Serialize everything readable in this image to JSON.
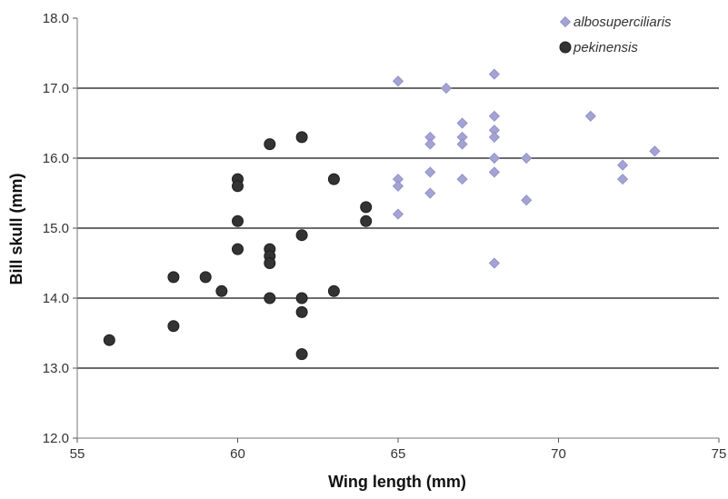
{
  "chart_data": {
    "type": "scatter",
    "title": "",
    "xlabel": "Wing length (mm)",
    "ylabel": "Bill skull (mm)",
    "xlim": [
      55,
      75
    ],
    "ylim": [
      12.0,
      18.0
    ],
    "x_ticks": [
      "55",
      "60",
      "65",
      "70",
      "75"
    ],
    "y_ticks": [
      "12.0",
      "13.0",
      "14.0",
      "15.0",
      "16.0",
      "17.0",
      "18.0"
    ],
    "grid": "horizontal",
    "legend_position": "top-right",
    "series": [
      {
        "name": "albosuperciliaris",
        "marker": "diamond",
        "color": "#a3a3d4",
        "points": [
          [
            65,
            17.1
          ],
          [
            66.5,
            17.0
          ],
          [
            68,
            17.2
          ],
          [
            66,
            16.3
          ],
          [
            66,
            16.2
          ],
          [
            67,
            16.5
          ],
          [
            67,
            16.3
          ],
          [
            67,
            16.2
          ],
          [
            68,
            16.6
          ],
          [
            68,
            16.4
          ],
          [
            68,
            16.3
          ],
          [
            68,
            16.0
          ],
          [
            68,
            15.8
          ],
          [
            69,
            16.0
          ],
          [
            71,
            16.6
          ],
          [
            72,
            15.9
          ],
          [
            72,
            15.7
          ],
          [
            73,
            16.1
          ],
          [
            65,
            15.7
          ],
          [
            65,
            15.6
          ],
          [
            65,
            15.2
          ],
          [
            66,
            15.8
          ],
          [
            66,
            15.5
          ],
          [
            67,
            15.7
          ],
          [
            69,
            15.4
          ],
          [
            68,
            14.5
          ]
        ]
      },
      {
        "name": "pekinensis",
        "marker": "circle",
        "color": "#333333",
        "points": [
          [
            56,
            13.4
          ],
          [
            58,
            14.3
          ],
          [
            58,
            13.6
          ],
          [
            59,
            14.3
          ],
          [
            59.5,
            14.1
          ],
          [
            60,
            15.7
          ],
          [
            60,
            15.6
          ],
          [
            60,
            15.1
          ],
          [
            60,
            14.7
          ],
          [
            61,
            16.2
          ],
          [
            61,
            14.7
          ],
          [
            61,
            14.6
          ],
          [
            61,
            14.5
          ],
          [
            61,
            14.0
          ],
          [
            62,
            16.3
          ],
          [
            62,
            14.9
          ],
          [
            62,
            14.0
          ],
          [
            62,
            13.8
          ],
          [
            62,
            13.2
          ],
          [
            63,
            15.7
          ],
          [
            63,
            14.1
          ],
          [
            64,
            15.3
          ],
          [
            64,
            15.1
          ]
        ]
      }
    ]
  }
}
